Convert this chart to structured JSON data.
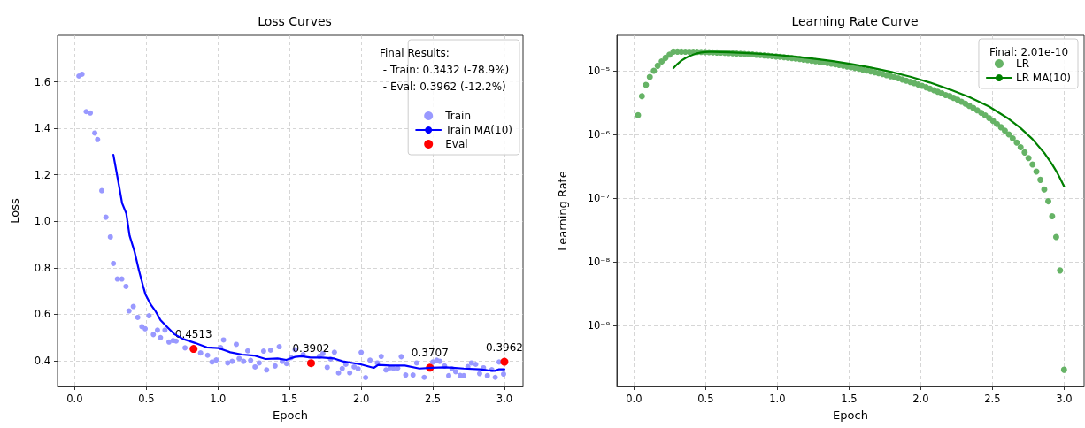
{
  "chart_data": [
    {
      "type": "scatter",
      "title": "Loss Curves",
      "xlabel": "Epoch",
      "ylabel": "Loss",
      "legend_title": "Final Results:\n - Train: 0.3432 (-78.9%)\n - Eval: 0.3962 (-12.2%)",
      "legend": "top right",
      "grid": true,
      "xlim": [
        -0.12,
        3.13
      ],
      "xticks": [
        {
          "value": 0,
          "label": "0.0"
        },
        0.5,
        {
          "value": 1,
          "label": "1.0"
        },
        1.5,
        {
          "value": 2,
          "label": "2.0"
        },
        2.5,
        {
          "value": 3,
          "label": "3.0"
        }
      ],
      "ylim": [
        0.29,
        1.8
      ],
      "yticks": [
        0.4,
        0.6,
        0.8,
        {
          "value": 1,
          "label": "1.0"
        },
        1.2,
        1.4,
        1.6
      ],
      "series": [
        {
          "name": "Train",
          "marker": "circle",
          "color": "#9999ff",
          "x": [
            0.029,
            0.051,
            0.08,
            0.109,
            0.14,
            0.16,
            0.189,
            0.218,
            0.249,
            0.27,
            0.298,
            0.329,
            0.358,
            0.379,
            0.409,
            0.44,
            0.469,
            0.492,
            0.519,
            0.549,
            0.578,
            0.599,
            0.63,
            0.658,
            0.687,
            0.708,
            0.77,
            0.879,
            0.928,
            0.959,
            0.988,
            1.019,
            1.039,
            1.068,
            1.099,
            1.128,
            1.148,
            1.179,
            1.208,
            1.228,
            1.259,
            1.288,
            1.319,
            1.34,
            1.368,
            1.399,
            1.428,
            1.449,
            1.479,
            1.51,
            1.539,
            1.595,
            1.708,
            1.733,
            1.763,
            1.786,
            1.813,
            1.842,
            1.868,
            1.893,
            1.92,
            1.951,
            1.979,
            2.0,
            2.031,
            2.062,
            2.113,
            2.14,
            2.173,
            2.202,
            2.226,
            2.255,
            2.28,
            2.311,
            2.362,
            2.387,
            2.44,
            2.5,
            2.527,
            2.549,
            2.582,
            2.611,
            2.634,
            2.66,
            2.691,
            2.716,
            2.745,
            2.77,
            2.8,
            2.827,
            2.854,
            2.881,
            2.912,
            2.936,
            2.963,
            2.994
          ],
          "values": [
            1.625,
            1.633,
            1.472,
            1.466,
            1.38,
            1.352,
            1.132,
            1.018,
            0.933,
            0.819,
            0.752,
            0.752,
            0.72,
            0.615,
            0.634,
            0.587,
            0.547,
            0.538,
            0.594,
            0.513,
            0.532,
            0.5,
            0.532,
            0.481,
            0.487,
            0.485,
            0.456,
            0.434,
            0.424,
            0.395,
            0.404,
            0.457,
            0.49,
            0.391,
            0.398,
            0.471,
            0.41,
            0.398,
            0.443,
            0.402,
            0.374,
            0.391,
            0.442,
            0.361,
            0.446,
            0.378,
            0.461,
            0.398,
            0.388,
            0.414,
            0.448,
            0.427,
            0.42,
            0.431,
            0.372,
            0.408,
            0.437,
            0.348,
            0.367,
            0.385,
            0.348,
            0.374,
            0.366,
            0.436,
            0.328,
            0.403,
            0.391,
            0.419,
            0.361,
            0.37,
            0.367,
            0.369,
            0.418,
            0.339,
            0.339,
            0.391,
            0.329,
            0.395,
            0.403,
            0.398,
            0.378,
            0.336,
            0.366,
            0.353,
            0.337,
            0.336,
            0.375,
            0.391,
            0.385,
            0.345,
            0.37,
            0.336,
            0.362,
            0.329,
            0.395,
            0.343
          ]
        },
        {
          "name": "Train MA(10)",
          "type": "line",
          "marker": "none",
          "line_style": "solid",
          "color": "#0000ff",
          "x": [
            0.27,
            0.3,
            0.331,
            0.36,
            0.383,
            0.418,
            0.449,
            0.479,
            0.494,
            0.531,
            0.562,
            0.599,
            0.644,
            0.695,
            0.757,
            0.84,
            0.922,
            1.004,
            1.086,
            1.169,
            1.251,
            1.333,
            1.416,
            1.477,
            1.539,
            1.584,
            1.646,
            1.728,
            1.811,
            1.872,
            1.996,
            2.088,
            2.119,
            2.202,
            2.305,
            2.407,
            2.49,
            2.593,
            2.716,
            2.829,
            2.881,
            2.932,
            2.963,
            3.0
          ],
          "values": [
            1.286,
            1.185,
            1.078,
            1.034,
            0.939,
            0.869,
            0.787,
            0.718,
            0.686,
            0.642,
            0.616,
            0.575,
            0.547,
            0.515,
            0.494,
            0.477,
            0.458,
            0.455,
            0.437,
            0.427,
            0.423,
            0.408,
            0.41,
            0.404,
            0.417,
            0.42,
            0.414,
            0.414,
            0.41,
            0.398,
            0.385,
            0.37,
            0.383,
            0.38,
            0.38,
            0.367,
            0.37,
            0.372,
            0.367,
            0.364,
            0.36,
            0.357,
            0.364,
            0.364
          ]
        },
        {
          "name": "Eval",
          "marker": "circle",
          "color": "#ff0000",
          "x": [
            0.83,
            1.65,
            2.48,
            3.0
          ],
          "values": [
            0.4513,
            0.3902,
            0.3707,
            0.3962
          ],
          "value_labels": [
            "0.4513",
            "0.3902",
            "0.3707",
            "0.3962"
          ]
        }
      ]
    },
    {
      "type": "scatter",
      "title": "Learning Rate Curve",
      "xlabel": "Epoch",
      "ylabel": "Learning Rate",
      "legend_title": "Final: 2.01e-10",
      "legend": "top right",
      "grid": true,
      "log": "y",
      "xlim": [
        -0.12,
        3.14
      ],
      "xticks": [
        {
          "value": 0,
          "label": "0.0"
        },
        0.5,
        {
          "value": 1,
          "label": "1.0"
        },
        1.5,
        {
          "value": 2,
          "label": "2.0"
        },
        2.5,
        {
          "value": 3,
          "label": "3.0"
        }
      ],
      "ylim": [
        1.1e-10,
        3.6e-05
      ],
      "yticks": [
        {
          "value": 1e-09,
          "label": "10⁻⁹"
        },
        {
          "value": 1e-08,
          "label": "10⁻⁸"
        },
        {
          "value": 1e-07,
          "label": "10⁻⁷"
        },
        {
          "value": 1e-06,
          "label": "10⁻⁶"
        },
        {
          "value": 1e-05,
          "label": "10⁻⁵"
        }
      ],
      "series": [
        {
          "name": "LR",
          "marker": "circle",
          "color": "#66b366",
          "x": [
            0.028,
            0.055,
            0.083,
            0.11,
            0.138,
            0.165,
            0.193,
            0.22,
            0.248,
            0.275,
            0.303,
            0.33,
            0.358,
            0.385,
            0.413,
            0.44,
            0.468,
            0.495,
            0.523,
            0.55,
            0.578,
            0.606,
            0.633,
            0.661,
            0.688,
            0.716,
            0.743,
            0.771,
            0.798,
            0.826,
            0.853,
            0.881,
            0.908,
            0.936,
            0.963,
            0.991,
            1.018,
            1.046,
            1.073,
            1.101,
            1.128,
            1.156,
            1.183,
            1.211,
            1.239,
            1.266,
            1.294,
            1.321,
            1.349,
            1.376,
            1.404,
            1.431,
            1.459,
            1.486,
            1.514,
            1.541,
            1.569,
            1.596,
            1.624,
            1.651,
            1.679,
            1.706,
            1.734,
            1.761,
            1.789,
            1.817,
            1.844,
            1.872,
            1.899,
            1.927,
            1.954,
            1.982,
            2.009,
            2.037,
            2.064,
            2.092,
            2.119,
            2.147,
            2.174,
            2.202,
            2.229,
            2.257,
            2.284,
            2.312,
            2.339,
            2.367,
            2.394,
            2.422,
            2.45,
            2.477,
            2.505,
            2.532,
            2.56,
            2.587,
            2.615,
            2.642,
            2.67,
            2.697,
            2.725,
            2.752,
            2.78,
            2.807,
            2.835,
            2.862,
            2.89,
            2.917,
            2.945,
            2.972,
            3.0
          ],
          "values": [
            2e-06,
            4e-06,
            6e-06,
            8e-06,
            1e-05,
            1.2e-05,
            1.4e-05,
            1.6e-05,
            1.8e-05,
            2e-05,
            1.999e-05,
            1.998e-05,
            1.995e-05,
            1.992e-05,
            1.987e-05,
            1.982e-05,
            1.975e-05,
            1.968e-05,
            1.959e-05,
            1.95e-05,
            1.939e-05,
            1.928e-05,
            1.916e-05,
            1.903e-05,
            1.888e-05,
            1.873e-05,
            1.857e-05,
            1.841e-05,
            1.823e-05,
            1.805e-05,
            1.785e-05,
            1.765e-05,
            1.744e-05,
            1.723e-05,
            1.701e-05,
            1.677e-05,
            1.654e-05,
            1.629e-05,
            1.604e-05,
            1.578e-05,
            1.552e-05,
            1.526e-05,
            1.498e-05,
            1.47e-05,
            1.442e-05,
            1.413e-05,
            1.384e-05,
            1.355e-05,
            1.325e-05,
            1.294e-05,
            1.264e-05,
            1.233e-05,
            1.202e-05,
            1.171e-05,
            1.139e-05,
            1.108e-05,
            1.076e-05,
            1.044e-05,
            1.013e-05,
            9.81e-06,
            9.49e-06,
            9.17e-06,
            8.86e-06,
            8.54e-06,
            8.23e-06,
            7.92e-06,
            7.61e-06,
            7.3e-06,
            6.99e-06,
            6.69e-06,
            6.39e-06,
            6.1e-06,
            5.81e-06,
            5.52e-06,
            5.24e-06,
            4.96e-06,
            4.69e-06,
            4.42e-06,
            4.16e-06,
            4.011e-06,
            3.758e-06,
            3.515e-06,
            3.276e-06,
            3.043e-06,
            2.818e-06,
            2.601e-06,
            2.39e-06,
            2.188e-06,
            1.993e-06,
            1.807e-06,
            1.629e-06,
            1.459e-06,
            1.298e-06,
            1.145e-06,
            1.003e-06,
            8.69e-07,
            7.43e-07,
            6.28e-07,
            5.22e-07,
            4.25e-07,
            3.38e-07,
            2.61e-07,
            1.937e-07,
            1.364e-07,
            8.92e-08,
            5.18e-08,
            2.45e-08,
            7.3e-09,
            2.01e-10
          ]
        },
        {
          "name": "LR MA(10)",
          "type": "line",
          "marker": "none",
          "line_style": "solid",
          "color": "#008000",
          "x": [
            0.275,
            0.303,
            0.33,
            0.358,
            0.385,
            0.413,
            0.44,
            0.468,
            0.495,
            0.523,
            0.55,
            0.661,
            0.826,
            0.963,
            1.101,
            1.239,
            1.376,
            1.514,
            1.651,
            1.789,
            1.927,
            2.064,
            2.202,
            2.339,
            2.477,
            2.615,
            2.697,
            2.78,
            2.862,
            2.917,
            2.945,
            2.972,
            3.0
          ],
          "values": [
            1.1e-05,
            1.28e-05,
            1.44e-05,
            1.579e-05,
            1.698e-05,
            1.797e-05,
            1.875e-05,
            1.933e-05,
            1.97e-05,
            1.986e-05,
            1.981e-05,
            1.951e-05,
            1.877e-05,
            1.795e-05,
            1.689e-05,
            1.565e-05,
            1.428e-05,
            1.279e-05,
            1.124e-05,
            9.65e-06,
            8.08e-06,
            6.54e-06,
            5.1e-06,
            3.865e-06,
            2.739e-06,
            1.751e-06,
            1.257e-06,
            8.43e-07,
            5.12e-07,
            3.39e-07,
            2.67e-07,
            2.05e-07,
            1.527e-07
          ]
        }
      ]
    }
  ]
}
